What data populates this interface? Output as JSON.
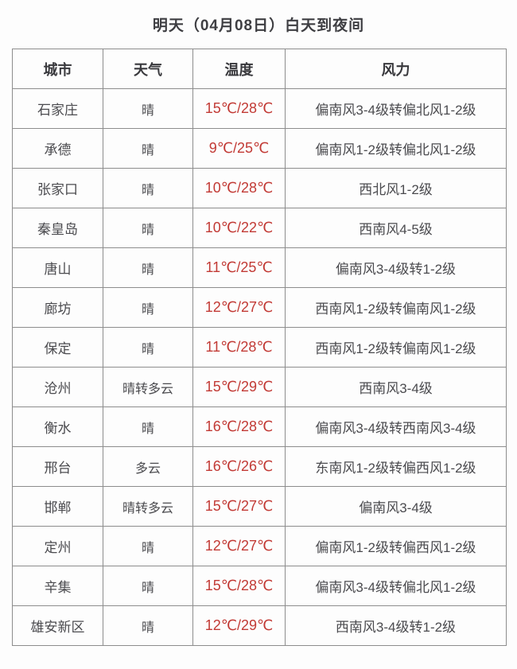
{
  "title": "明天（04月08日）白天到夜间",
  "table": {
    "headers": [
      "城市",
      "天气",
      "温度",
      "风力"
    ],
    "rows": [
      {
        "city": "石家庄",
        "weather": "晴",
        "temperature": "15℃/28℃",
        "wind": "偏南风3-4级转偏北风1-2级"
      },
      {
        "city": "承德",
        "weather": "晴",
        "temperature": "9℃/25℃",
        "wind": "偏南风1-2级转偏北风1-2级"
      },
      {
        "city": "张家口",
        "weather": "晴",
        "temperature": "10℃/28℃",
        "wind": "西北风1-2级"
      },
      {
        "city": "秦皇岛",
        "weather": "晴",
        "temperature": "10℃/22℃",
        "wind": "西南风4-5级"
      },
      {
        "city": "唐山",
        "weather": "晴",
        "temperature": "11℃/25℃",
        "wind": "偏南风3-4级转1-2级"
      },
      {
        "city": "廊坊",
        "weather": "晴",
        "temperature": "12℃/27℃",
        "wind": "西南风1-2级转偏南风1-2级"
      },
      {
        "city": "保定",
        "weather": "晴",
        "temperature": "11℃/28℃",
        "wind": "西南风1-2级转偏南风1-2级"
      },
      {
        "city": "沧州",
        "weather": "晴转多云",
        "temperature": "15℃/29℃",
        "wind": "西南风3-4级"
      },
      {
        "city": "衡水",
        "weather": "晴",
        "temperature": "16℃/28℃",
        "wind": "偏南风3-4级转西南风3-4级"
      },
      {
        "city": "邢台",
        "weather": "多云",
        "temperature": "16℃/26℃",
        "wind": "东南风1-2级转偏西风1-2级"
      },
      {
        "city": "邯郸",
        "weather": "晴转多云",
        "temperature": "15℃/27℃",
        "wind": "偏南风3-4级"
      },
      {
        "city": "定州",
        "weather": "晴",
        "temperature": "12℃/27℃",
        "wind": "偏南风1-2级转偏西风1-2级"
      },
      {
        "city": "辛集",
        "weather": "晴",
        "temperature": "15℃/28℃",
        "wind": "偏南风3-4级转偏北风1-2级"
      },
      {
        "city": "雄安新区",
        "weather": "晴",
        "temperature": "12℃/29℃",
        "wind": "西南风3-4级转1-2级"
      }
    ]
  },
  "colors": {
    "temperature_text": "#c23a35",
    "body_text": "#4b4b4f",
    "header_text": "#39393d",
    "border": "#8d8d8d",
    "background": "#fdfdfd"
  }
}
